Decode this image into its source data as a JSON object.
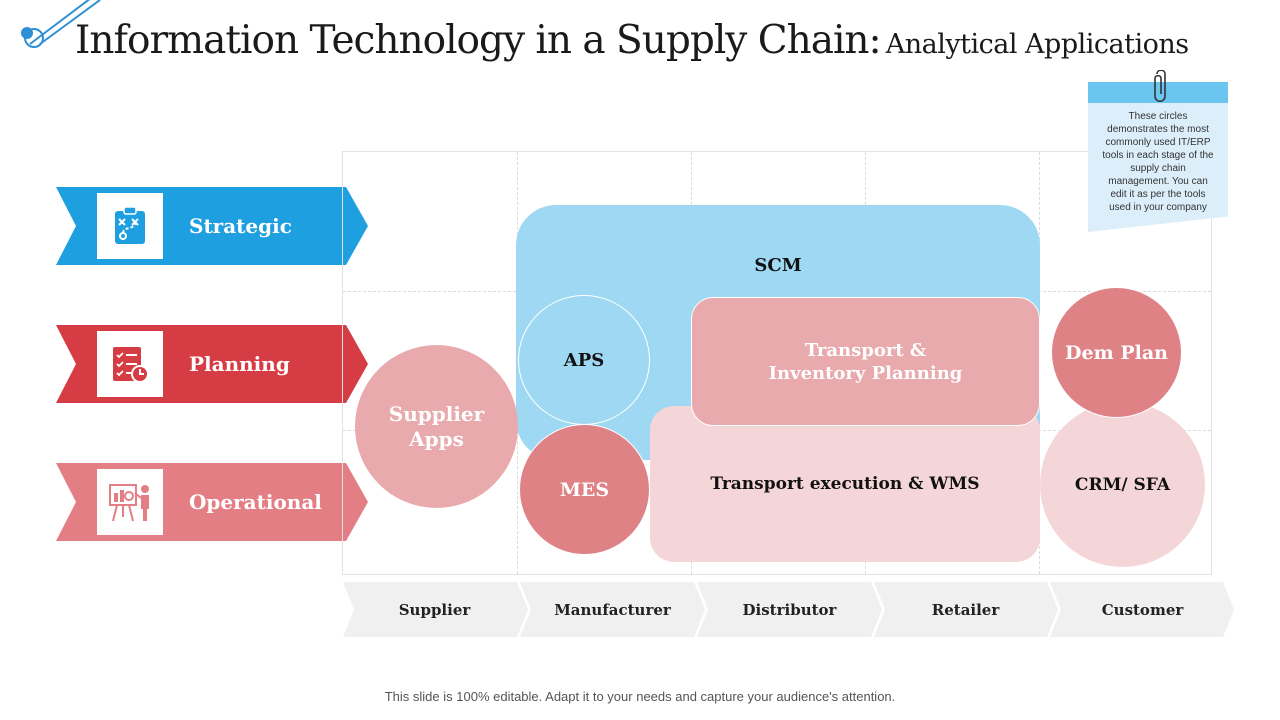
{
  "title": {
    "main": "Information Technology in a Supply Chain:",
    "sub": "Analytical Applications"
  },
  "levels": [
    {
      "label": "Strategic",
      "color": "#1e9fe0",
      "icon": "strategy-board-icon"
    },
    {
      "label": "Planning",
      "color": "#d63c43",
      "icon": "checklist-clock-icon"
    },
    {
      "label": "Operational",
      "color": "#e37f84",
      "icon": "presentation-icon"
    }
  ],
  "tools": {
    "scm": "SCM",
    "aps": "APS",
    "mes": "MES",
    "supplier_apps": "Supplier Apps",
    "transport_inventory": "Transport & Inventory Planning",
    "transport_execution": "Transport execution & WMS",
    "dem_plan": "Dem Plan",
    "crm_sfa": "CRM/ SFA"
  },
  "stages": [
    "Supplier",
    "Manufacturer",
    "Distributor",
    "Retailer",
    "Customer"
  ],
  "note": {
    "text": "These circles demonstrates the most commonly used IT/ERP tools in each stage of the supply chain management.  You can edit it as per the tools used in your company"
  },
  "footer": "This slide is 100% editable. Adapt it to your needs and capture your audience's attention.",
  "colors": {
    "scm": "#9fd8f3",
    "pink_dark": "#df8286",
    "pink_mid": "#e9aaad",
    "pink_light": "#f5d6d8",
    "stage_bg": "#f0f0f0"
  }
}
